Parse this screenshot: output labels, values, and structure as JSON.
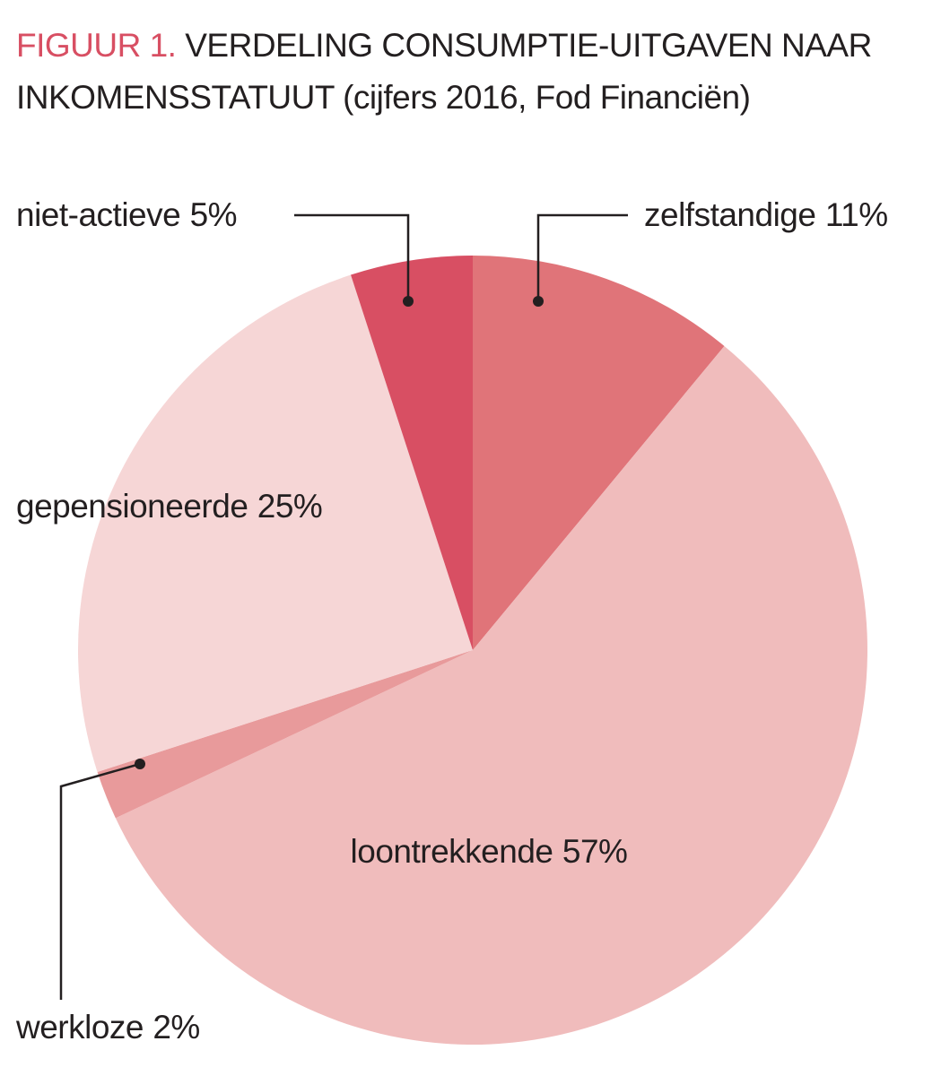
{
  "chart_data": {
    "type": "pie",
    "label": "FIGUUR 1.",
    "title": "VERDELING CONSUMPTIE-UITGAVEN NAAR INKOMENSSTATUUT (cijfers 2016, Fod Financiën)",
    "categories": [
      "zelfstandige",
      "loontrekkende",
      "werkloze",
      "gepensioneerde",
      "niet-actieve"
    ],
    "values": [
      11,
      57,
      2,
      25,
      5
    ],
    "value_labels": [
      "11%",
      "57%",
      "2%",
      "25%",
      "5%"
    ],
    "colors": [
      "#e07479",
      "#f0bcbc",
      "#e89a9b",
      "#f6d6d6",
      "#d84f63"
    ]
  }
}
